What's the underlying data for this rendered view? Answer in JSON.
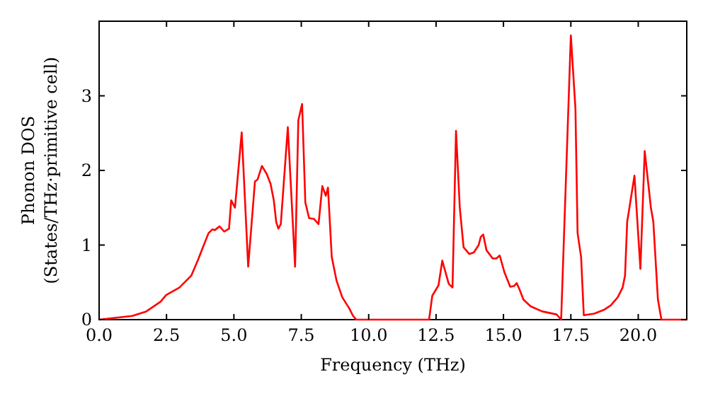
{
  "chart_data": {
    "type": "line",
    "xlabel": "Frequency (THz)",
    "ylabel": "Phonon DOS\n(States/THz·primitive cell)",
    "xlim": [
      0,
      21.8
    ],
    "ylim": [
      0,
      4
    ],
    "xticks": [
      {
        "value": 0,
        "label": "0.0"
      },
      {
        "value": 2.5,
        "label": "2.5"
      },
      {
        "value": 5,
        "label": "5.0"
      },
      {
        "value": 7.5,
        "label": "7.5"
      },
      {
        "value": 10,
        "label": "10.0"
      },
      {
        "value": 12.5,
        "label": "12.5"
      },
      {
        "value": 15,
        "label": "15.0"
      },
      {
        "value": 17.5,
        "label": "17.5"
      },
      {
        "value": 20,
        "label": "20.0"
      }
    ],
    "yticks": [
      0,
      1,
      2,
      3
    ],
    "grid": false,
    "marker": "none",
    "line_style": "solid",
    "series": [
      {
        "color": "#ff0000",
        "x": [
          0,
          1.23,
          1.75,
          2.28,
          2.49,
          2.98,
          3.42,
          3.68,
          3.85,
          4.06,
          4.2,
          4.29,
          4.47,
          4.64,
          4.82,
          4.9,
          5.04,
          5.29,
          5.53,
          5.78,
          5.88,
          6.04,
          6.22,
          6.36,
          6.48,
          6.57,
          6.65,
          6.74,
          7.0,
          7.27,
          7.39,
          7.53,
          7.65,
          7.79,
          7.97,
          8.14,
          8.28,
          8.41,
          8.49,
          8.63,
          8.81,
          9.02,
          9.28,
          9.42,
          9.54,
          10,
          12.24,
          12.36,
          12.59,
          12.73,
          12.97,
          13.11,
          13.24,
          13.38,
          13.52,
          13.73,
          13.9,
          14.08,
          14.16,
          14.25,
          14.37,
          14.6,
          14.74,
          14.86,
          15.04,
          15.25,
          15.39,
          15.49,
          15.6,
          15.74,
          16.0,
          16.44,
          16.97,
          17.14,
          17.5,
          17.67,
          17.75,
          17.88,
          17.98,
          18.37,
          18.72,
          18.98,
          19.24,
          19.42,
          19.51,
          19.59,
          19.86,
          20.08,
          20.24,
          20.47,
          20.56,
          20.73,
          20.86,
          21.8
        ],
        "values": [
          0,
          0.05,
          0.11,
          0.24,
          0.33,
          0.43,
          0.59,
          0.81,
          0.97,
          1.16,
          1.21,
          1.2,
          1.25,
          1.18,
          1.22,
          1.6,
          1.5,
          2.51,
          0.71,
          1.85,
          1.88,
          2.06,
          1.95,
          1.82,
          1.6,
          1.31,
          1.22,
          1.28,
          2.58,
          0.71,
          2.67,
          2.89,
          1.57,
          1.36,
          1.35,
          1.28,
          1.79,
          1.66,
          1.77,
          0.84,
          0.52,
          0.3,
          0.15,
          0.05,
          0,
          0,
          0,
          0.32,
          0.46,
          0.79,
          0.48,
          0.43,
          2.53,
          1.5,
          0.97,
          0.88,
          0.9,
          1.0,
          1.11,
          1.14,
          0.93,
          0.82,
          0.82,
          0.86,
          0.63,
          0.44,
          0.45,
          0.49,
          0.4,
          0.27,
          0.18,
          0.11,
          0.07,
          0,
          3.81,
          2.83,
          1.16,
          0.84,
          0.06,
          0.08,
          0.13,
          0.19,
          0.3,
          0.43,
          0.59,
          1.31,
          1.93,
          0.68,
          2.26,
          1.5,
          1.31,
          0.27,
          0,
          0
        ]
      }
    ]
  }
}
